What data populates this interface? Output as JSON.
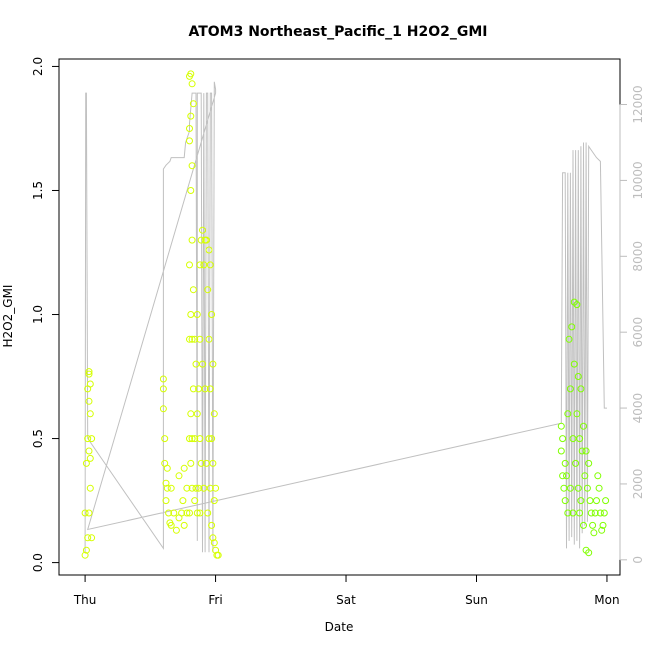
{
  "chart_data": {
    "type": "scatter",
    "title": "ATOM3 Northeast_Pacific_1 H2O2_GMI",
    "xlabel": "Date",
    "ylabel": "H2O2_GMI",
    "x_tick_labels": [
      "Thu",
      "Fri",
      "Sat",
      "Sun",
      "Mon"
    ],
    "x_ticks_days": [
      0,
      1,
      2,
      3,
      4
    ],
    "xlim_days": [
      -0.2,
      4.1
    ],
    "ylim": [
      -0.05,
      2.03
    ],
    "y_ticks": [
      "0.0",
      "0.5",
      "1.0",
      "1.5",
      "2.0"
    ],
    "y2_ticks": [
      "0",
      "2000",
      "4000",
      "6000",
      "8000",
      "10000",
      "12000"
    ],
    "y2_lim": [
      -400,
      13200
    ],
    "colors": {
      "points_yellow": "#d6ff00",
      "points_green": "#80ff00",
      "altitude_line": "#c0c0c0",
      "axis": "#000000",
      "right_axis": "#bdbdbd"
    },
    "series": [
      {
        "kind": "points",
        "color_key": "points_yellow",
        "x": [
          0.0,
          0.0,
          0.01,
          0.01,
          0.02,
          0.02,
          0.02,
          0.03,
          0.03,
          0.03,
          0.03,
          0.03,
          0.04,
          0.04,
          0.04,
          0.04,
          0.05,
          0.05,
          0.6,
          0.6,
          0.6,
          0.61,
          0.61,
          0.62,
          0.62,
          0.63,
          0.63,
          0.64,
          0.65,
          0.66,
          0.66,
          0.68,
          0.7,
          0.72,
          0.72,
          0.74,
          0.75,
          0.76,
          0.76,
          0.78,
          0.78,
          0.8,
          0.8,
          0.8,
          0.8,
          0.8,
          0.8,
          0.8,
          0.81,
          0.81,
          0.81,
          0.81,
          0.81,
          0.81,
          0.82,
          0.82,
          0.82,
          0.82,
          0.82,
          0.82,
          0.83,
          0.83,
          0.83,
          0.84,
          0.84,
          0.84,
          0.85,
          0.85,
          0.86,
          0.86,
          0.86,
          0.87,
          0.87,
          0.88,
          0.88,
          0.88,
          0.88,
          0.89,
          0.89,
          0.9,
          0.9,
          0.91,
          0.91,
          0.92,
          0.92,
          0.93,
          0.93,
          0.94,
          0.94,
          0.95,
          0.95,
          0.95,
          0.96,
          0.96,
          0.96,
          0.97,
          0.97,
          0.97,
          0.98,
          0.98,
          0.98,
          0.99,
          0.99,
          0.99,
          1.0,
          1.0,
          1.01,
          1.02
        ],
        "y": [
          0.03,
          0.2,
          0.05,
          0.4,
          0.1,
          0.5,
          0.7,
          0.2,
          0.45,
          0.65,
          0.76,
          0.77,
          0.3,
          0.42,
          0.6,
          0.72,
          0.1,
          0.5,
          0.74,
          0.7,
          0.62,
          0.5,
          0.4,
          0.32,
          0.25,
          0.38,
          0.3,
          0.2,
          0.16,
          0.15,
          0.3,
          0.2,
          0.13,
          0.18,
          0.35,
          0.2,
          0.25,
          0.38,
          0.15,
          0.2,
          0.3,
          1.7,
          1.75,
          0.2,
          0.5,
          0.9,
          1.2,
          1.96,
          1.97,
          1.8,
          1.5,
          1.0,
          0.6,
          0.4,
          1.93,
          1.6,
          1.3,
          0.9,
          0.5,
          0.3,
          1.85,
          1.1,
          0.7,
          0.9,
          0.5,
          0.25,
          0.8,
          0.3,
          1.0,
          0.6,
          0.2,
          0.7,
          0.3,
          1.2,
          0.9,
          0.5,
          0.2,
          1.3,
          0.4,
          1.34,
          0.8,
          1.2,
          0.3,
          1.3,
          0.7,
          1.3,
          0.4,
          1.1,
          0.2,
          1.26,
          0.9,
          0.5,
          1.2,
          0.7,
          0.3,
          1.0,
          0.5,
          0.15,
          0.8,
          0.4,
          0.1,
          0.6,
          0.25,
          0.08,
          0.3,
          0.05,
          0.03,
          0.03
        ]
      },
      {
        "kind": "points",
        "color_key": "points_green",
        "x": [
          3.65,
          3.65,
          3.66,
          3.66,
          3.67,
          3.68,
          3.68,
          3.69,
          3.7,
          3.7,
          3.71,
          3.72,
          3.72,
          3.73,
          3.74,
          3.74,
          3.75,
          3.75,
          3.76,
          3.77,
          3.77,
          3.78,
          3.78,
          3.79,
          3.79,
          3.8,
          3.8,
          3.81,
          3.82,
          3.82,
          3.83,
          3.84,
          3.84,
          3.85,
          3.86,
          3.86,
          3.87,
          3.88,
          3.89,
          3.9,
          3.91,
          3.92,
          3.93,
          3.94,
          3.95,
          3.96,
          3.97,
          3.98,
          3.99
        ],
        "y": [
          0.55,
          0.45,
          0.5,
          0.35,
          0.3,
          0.4,
          0.25,
          0.35,
          0.6,
          0.2,
          0.9,
          0.7,
          0.3,
          0.95,
          0.5,
          0.2,
          1.05,
          0.8,
          0.4,
          1.04,
          0.6,
          0.3,
          0.75,
          0.2,
          0.5,
          0.7,
          0.25,
          0.45,
          0.55,
          0.15,
          0.35,
          0.45,
          0.05,
          0.3,
          0.4,
          0.04,
          0.25,
          0.2,
          0.15,
          0.12,
          0.2,
          0.25,
          0.35,
          0.3,
          0.2,
          0.13,
          0.15,
          0.2,
          0.25
        ]
      },
      {
        "kind": "line",
        "color_key": "altitude_line",
        "axis": "right",
        "x": [
          0.0,
          0.005,
          0.01,
          0.02,
          0.6,
          0.6,
          0.6,
          0.62,
          0.65,
          0.66,
          0.76,
          0.77,
          0.77,
          0.8,
          0.8,
          0.82,
          0.85,
          0.86,
          0.86,
          0.88,
          0.89,
          0.9,
          0.91,
          0.92,
          0.93,
          0.94,
          0.95,
          0.96,
          0.97,
          0.98,
          0.99,
          1.0,
          1.0,
          0.02,
          3.65,
          3.66,
          3.68,
          3.69,
          3.7,
          3.71,
          3.72,
          3.73,
          3.74,
          3.75,
          3.76,
          3.77,
          3.78,
          3.79,
          3.8,
          3.81,
          3.82,
          3.83,
          3.84,
          3.85,
          3.86,
          3.88,
          3.9,
          3.92,
          3.95,
          3.98,
          3.99,
          4.0
        ],
        "y": [
          200,
          12300,
          12300,
          3200,
          300,
          10200,
          10300,
          10400,
          10500,
          10600,
          10600,
          11000,
          11000,
          11300,
          11500,
          12300,
          12300,
          500,
          12300,
          12300,
          12300,
          200,
          12300,
          200,
          12300,
          12300,
          200,
          12300,
          12300,
          200,
          12600,
          12400,
          12300,
          800,
          3600,
          10200,
          10200,
          300,
          10200,
          500,
          10200,
          600,
          10800,
          400,
          10800,
          500,
          10800,
          300,
          10900,
          700,
          11000,
          900,
          11000,
          1000,
          10900,
          10800,
          10700,
          10600,
          10500,
          4000,
          4000,
          4000
        ]
      }
    ]
  }
}
